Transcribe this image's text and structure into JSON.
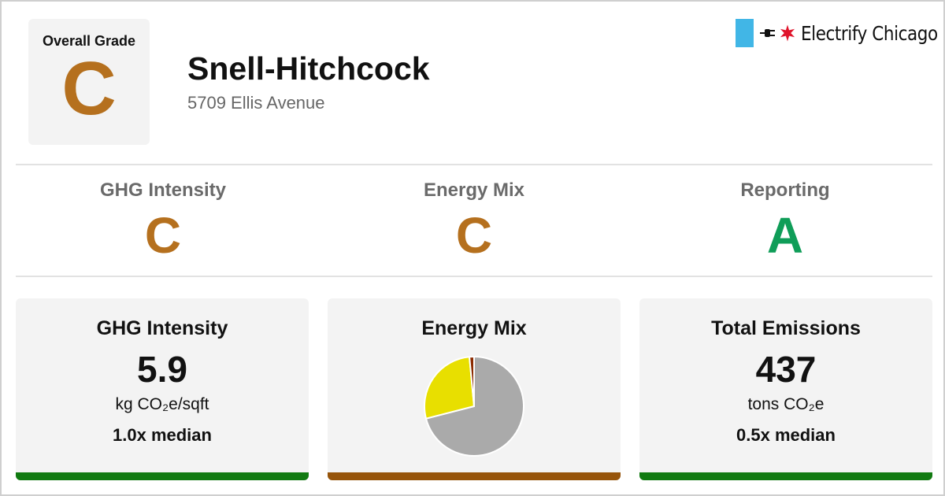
{
  "header": {
    "overall_grade_label": "Overall Grade",
    "overall_grade": "C",
    "building_name": "Snell-Hitchcock",
    "building_address": "5709 Ellis Avenue",
    "logo_text": "Electrify Chicago"
  },
  "grades": [
    {
      "title": "GHG Intensity",
      "grade": "C",
      "color": "#b5701e"
    },
    {
      "title": "Energy Mix",
      "grade": "C",
      "color": "#b5701e"
    },
    {
      "title": "Reporting",
      "grade": "A",
      "color": "#0f9d58"
    }
  ],
  "cards": {
    "ghg": {
      "title": "GHG Intensity",
      "value": "5.9",
      "unit": "kg CO₂e/sqft",
      "median": "1.0x median",
      "bar_color": "#117a11"
    },
    "energy": {
      "title": "Energy Mix",
      "bar_color": "#96540a"
    },
    "emissions": {
      "title": "Total Emissions",
      "value": "437",
      "unit": "tons CO₂e",
      "median": "0.5x median",
      "bar_color": "#117a11"
    }
  },
  "chart_data": {
    "type": "pie",
    "slices": [
      {
        "value": 71,
        "color": "#aaaaaa"
      },
      {
        "value": 27.5,
        "color": "#e8df00"
      },
      {
        "value": 1.5,
        "color": "#8b2a00"
      }
    ],
    "start_angle_deg": 0
  },
  "colors": {
    "grade_c": "#b5701e",
    "grade_a": "#0f9d58",
    "logo_flag": "#41b6e6",
    "logo_star": "#e0142b"
  },
  "icons": {
    "plug": "plug-icon",
    "star": "chicago-star-icon"
  }
}
